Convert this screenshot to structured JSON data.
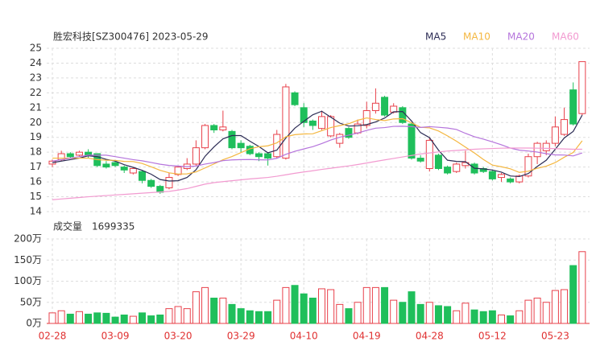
{
  "chart_data": [
    {
      "type": "candlestick",
      "title": "胜宏科技[SZ300476] 2023-05-29",
      "open": [
        17.2,
        17.5,
        17.9,
        17.8,
        18.0,
        17.9,
        17.2,
        17.3,
        17.0,
        16.6,
        16.7,
        16.1,
        15.7,
        15.6,
        16.5,
        16.9,
        17.2,
        18.3,
        19.8,
        19.5,
        19.4,
        18.6,
        18.4,
        17.9,
        17.9,
        17.7,
        17.6,
        22.0,
        21.0,
        20.1,
        19.6,
        19.1,
        18.6,
        19.6,
        19.3,
        19.8,
        20.8,
        21.7,
        20.7,
        21.0,
        19.9,
        17.6,
        16.9,
        17.8,
        17.0,
        16.7,
        17.1,
        17.2,
        16.9,
        16.7,
        16.3,
        16.2,
        16.0,
        16.4,
        17.7,
        18.1,
        18.6,
        19.2,
        22.2,
        20.6
      ],
      "high": [
        17.5,
        18.1,
        18.0,
        18.1,
        18.2,
        17.9,
        17.4,
        17.4,
        17.1,
        17.0,
        16.8,
        16.2,
        15.8,
        16.6,
        17.1,
        17.6,
        18.8,
        19.9,
        19.9,
        20.8,
        19.5,
        18.8,
        18.5,
        18.0,
        18.0,
        19.5,
        22.6,
        22.1,
        21.3,
        20.2,
        20.8,
        20.5,
        19.3,
        19.7,
        20.2,
        21.4,
        22.3,
        21.8,
        21.3,
        21.1,
        20.0,
        17.8,
        19.0,
        17.9,
        17.1,
        17.3,
        18.1,
        17.3,
        17.0,
        16.8,
        16.6,
        16.3,
        16.5,
        17.9,
        18.7,
        18.8,
        20.4,
        21.0,
        22.7,
        24.1
      ],
      "low": [
        17.0,
        17.4,
        17.6,
        17.7,
        17.6,
        17.0,
        16.9,
        17.0,
        16.6,
        16.5,
        15.9,
        15.6,
        15.2,
        15.5,
        16.4,
        16.8,
        17.1,
        18.2,
        19.3,
        19.4,
        18.2,
        18.0,
        17.8,
        17.4,
        17.1,
        17.6,
        17.5,
        21.1,
        19.7,
        19.5,
        19.5,
        19.0,
        18.3,
        18.9,
        19.2,
        19.6,
        20.6,
        20.4,
        20.6,
        19.9,
        17.5,
        17.3,
        16.7,
        16.8,
        16.5,
        16.6,
        16.9,
        16.5,
        16.6,
        16.1,
        16.0,
        15.9,
        15.9,
        16.3,
        17.2,
        17.8,
        18.4,
        19.1,
        19.8,
        20.5
      ],
      "close": [
        17.4,
        17.9,
        17.7,
        18.0,
        17.8,
        17.1,
        17.0,
        17.1,
        16.8,
        16.9,
        16.1,
        15.7,
        15.3,
        16.3,
        17.0,
        17.2,
        18.3,
        19.8,
        19.5,
        19.7,
        18.3,
        18.3,
        17.9,
        17.7,
        17.6,
        19.2,
        22.4,
        21.2,
        20.0,
        19.8,
        20.4,
        20.4,
        19.2,
        19.0,
        19.9,
        20.8,
        21.3,
        20.5,
        21.1,
        20.0,
        17.6,
        17.4,
        18.8,
        16.9,
        16.6,
        17.2,
        17.3,
        16.6,
        16.7,
        16.2,
        16.5,
        16.0,
        16.4,
        17.7,
        18.6,
        18.6,
        19.7,
        20.2,
        19.9,
        24.1
      ],
      "up_color": "#e8414b",
      "down_color": "#1fbf5b",
      "series": [
        {
          "name": "MA5",
          "color": "#2c2c55",
          "values": [
            17.3,
            17.4,
            17.5,
            17.6,
            17.76,
            17.7,
            17.52,
            17.4,
            17.16,
            16.98,
            16.78,
            16.52,
            16.16,
            16.06,
            16.08,
            16.3,
            16.82,
            17.72,
            18.36,
            18.9,
            19.12,
            19.12,
            18.74,
            18.38,
            17.96,
            18.14,
            18.96,
            19.62,
            20.08,
            20.52,
            20.76,
            20.36,
            19.96,
            19.76,
            19.78,
            19.86,
            20.04,
            20.3,
            20.72,
            20.74,
            20.1,
            19.32,
            18.98,
            18.14,
            17.46,
            17.38,
            17.36,
            16.92,
            16.88,
            16.8,
            16.66,
            16.4,
            16.36,
            16.56,
            17.04,
            17.46,
            18.2,
            18.96,
            19.4,
            20.5
          ]
        },
        {
          "name": "MA10",
          "color": "#f4b740",
          "values": [
            17.6,
            17.6,
            17.6,
            17.6,
            17.6,
            17.5,
            17.46,
            17.45,
            17.38,
            17.37,
            17.24,
            17.02,
            16.78,
            16.61,
            16.53,
            16.54,
            16.67,
            16.94,
            17.21,
            17.49,
            17.71,
            17.97,
            18.23,
            18.37,
            18.43,
            18.63,
            19.04,
            19.18,
            19.23,
            19.24,
            19.45,
            19.66,
            19.79,
            19.92,
            20.15,
            20.31,
            20.2,
            20.13,
            20.24,
            20.26,
            19.98,
            19.68,
            19.64,
            19.43,
            19.1,
            18.74,
            18.34,
            17.95,
            17.51,
            17.13,
            17.02,
            16.88,
            16.64,
            16.72,
            16.92,
            17.06,
            17.3,
            17.66,
            17.98,
            18.77
          ]
        },
        {
          "name": "MA20",
          "color": "#b574dc",
          "values": [
            17.4,
            17.5,
            17.6,
            17.7,
            17.8,
            17.8,
            17.8,
            17.7,
            17.6,
            17.5,
            17.42,
            17.31,
            17.19,
            17.11,
            17.07,
            17.02,
            17.07,
            17.2,
            17.3,
            17.43,
            17.48,
            17.5,
            17.51,
            17.49,
            17.48,
            17.59,
            17.86,
            18.06,
            18.22,
            18.37,
            18.58,
            18.82,
            19.01,
            19.15,
            19.29,
            19.47,
            19.62,
            19.66,
            19.74,
            19.75,
            19.72,
            19.67,
            19.72,
            19.68,
            19.63,
            19.53,
            19.27,
            19.04,
            18.88,
            18.7,
            18.5,
            18.28,
            18.14,
            18.08,
            18.01,
            17.9,
            17.82,
            17.81,
            17.75,
            17.95
          ]
        },
        {
          "name": "MA60",
          "color": "#f29ad0",
          "values": [
            14.8,
            14.85,
            14.9,
            14.95,
            15.0,
            15.04,
            15.08,
            15.12,
            15.16,
            15.2,
            15.24,
            15.28,
            15.32,
            15.36,
            15.45,
            15.55,
            15.7,
            15.85,
            15.95,
            16.02,
            16.08,
            16.14,
            16.2,
            16.25,
            16.3,
            16.38,
            16.48,
            16.58,
            16.67,
            16.75,
            16.84,
            16.92,
            17.0,
            17.08,
            17.17,
            17.27,
            17.38,
            17.48,
            17.58,
            17.68,
            17.78,
            17.88,
            17.95,
            18.02,
            18.08,
            18.12,
            18.16,
            18.2,
            18.23,
            18.25,
            18.27,
            18.28,
            18.28,
            18.28,
            18.27,
            18.26,
            18.24,
            18.22,
            18.2,
            18.2
          ]
        }
      ],
      "ylim": [
        14,
        25
      ],
      "yticks": [
        14,
        15,
        16,
        17,
        18,
        19,
        20,
        21,
        22,
        23,
        24,
        25
      ],
      "grid": true,
      "legend": "top-right"
    },
    {
      "type": "bar",
      "title": "成交量",
      "last_value": 1699335,
      "categories": [
        "02-28",
        null,
        null,
        null,
        null,
        null,
        null,
        "03-09",
        null,
        null,
        null,
        null,
        null,
        null,
        "03-20",
        null,
        null,
        null,
        null,
        null,
        null,
        "03-29",
        null,
        null,
        null,
        null,
        null,
        null,
        "04-10",
        null,
        null,
        null,
        null,
        null,
        null,
        "04-19",
        null,
        null,
        null,
        null,
        null,
        null,
        "04-28",
        null,
        null,
        null,
        null,
        null,
        null,
        "05-12",
        null,
        null,
        null,
        null,
        null,
        null,
        "05-23",
        null,
        null,
        null
      ],
      "values": [
        25,
        30,
        22,
        28,
        22,
        25,
        24,
        15,
        20,
        17,
        25,
        18,
        20,
        35,
        40,
        35,
        75,
        85,
        60,
        60,
        45,
        35,
        30,
        28,
        28,
        55,
        85,
        90,
        70,
        60,
        82,
        80,
        45,
        35,
        50,
        85,
        85,
        85,
        55,
        50,
        75,
        45,
        50,
        42,
        40,
        30,
        48,
        32,
        28,
        30,
        20,
        18,
        30,
        55,
        60,
        50,
        78,
        80,
        137,
        169.9335
      ],
      "ylim": [
        0,
        200
      ],
      "yticks": [
        {
          "value": 0,
          "label": "0万"
        },
        {
          "value": 50,
          "label": "50万"
        },
        {
          "value": 100,
          "label": "100万"
        },
        {
          "value": 150,
          "label": "150万"
        },
        {
          "value": 200,
          "label": "200万"
        }
      ],
      "grid": true
    }
  ]
}
